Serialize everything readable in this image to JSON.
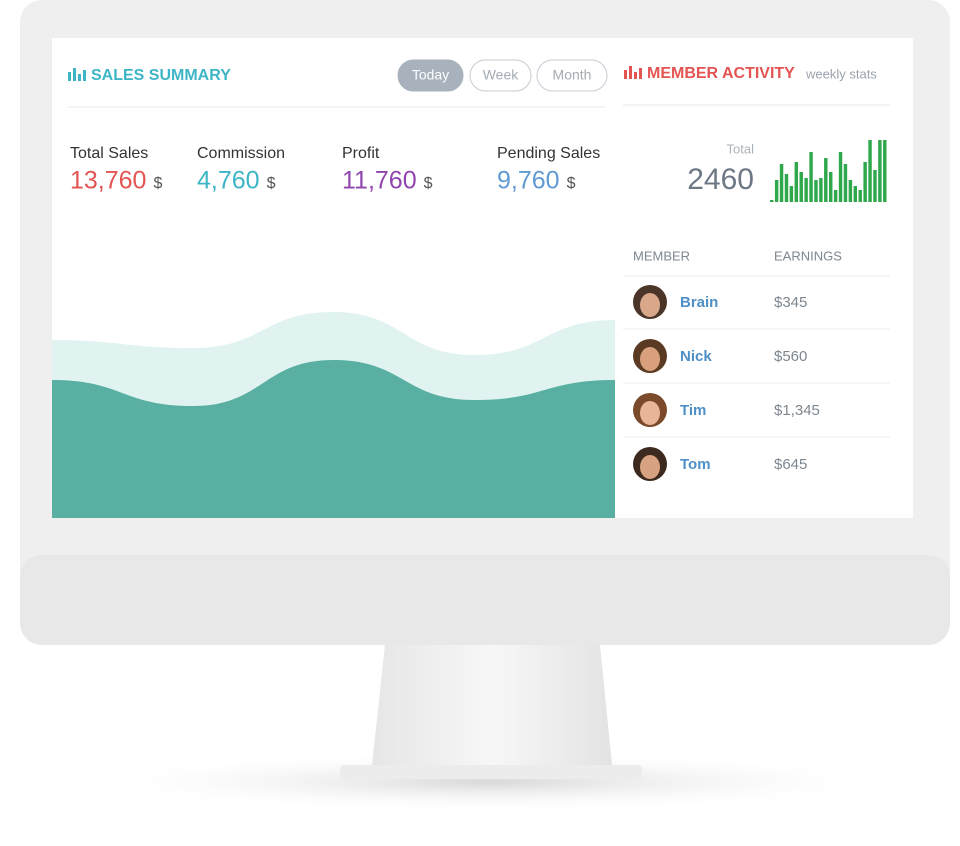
{
  "sales_summary": {
    "title": "SALES SUMMARY",
    "filters": [
      "Today",
      "Week",
      "Month"
    ],
    "active_filter": 0,
    "stats": [
      {
        "label": "Total Sales",
        "value": "13,760",
        "unit": "$",
        "color": "#e35452"
      },
      {
        "label": "Commission",
        "value": "4,760",
        "unit": "$",
        "color": "#3db5c6"
      },
      {
        "label": "Profit",
        "value": "11,760",
        "unit": "$",
        "color": "#8f45ad"
      },
      {
        "label": "Pending Sales",
        "value": "9,760",
        "unit": "$",
        "color": "#5f9ad2"
      }
    ],
    "area_chart": {
      "series": [
        {
          "color": "#e1f3f1",
          "values": [
            178,
            170,
            206,
            163,
            198
          ]
        },
        {
          "color": "#58afa2",
          "values": [
            138,
            112,
            158,
            118,
            138
          ]
        }
      ]
    }
  },
  "member_activity": {
    "title": "MEMBER ACTIVITY",
    "subtitle": "weekly stats",
    "total_label": "Total",
    "total": 2460,
    "bars": {
      "color": "#2fa84c",
      "values": [
        2,
        22,
        38,
        28,
        16,
        40,
        30,
        24,
        50,
        22,
        24,
        44,
        30,
        12,
        50,
        38,
        22,
        16,
        12,
        40,
        62,
        32,
        62,
        62
      ]
    },
    "table": {
      "headers": [
        "MEMBER",
        "EARNINGS"
      ],
      "rows": [
        [
          "Brain",
          "$345"
        ],
        [
          "Nick",
          "$560"
        ],
        [
          "Tim",
          "$1,345"
        ],
        [
          "Tom",
          "$645"
        ]
      ]
    }
  }
}
